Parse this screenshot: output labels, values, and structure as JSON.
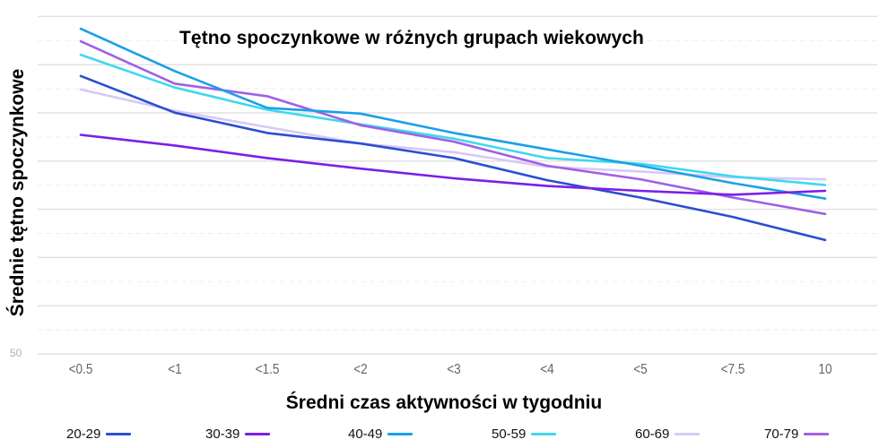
{
  "chart_data": {
    "type": "line",
    "title": "Tętno spoczynkowe w różnych grupach wiekowych",
    "xlabel": "Średni czas aktywności w tygodniu",
    "ylabel": "Średnie tętno spoczynkowe",
    "categories": [
      "<0.5",
      "<1",
      "<1.5",
      "<2",
      "<3",
      "<4",
      "<5",
      "<7.5",
      "10"
    ],
    "y_tick_labels": [
      "50"
    ],
    "ylim": [
      50,
      85
    ],
    "grid": true,
    "legend_position": "bottom",
    "series": [
      {
        "name": "20-29",
        "color": "#2a4fd0",
        "values": [
          78.8,
          75.0,
          72.9,
          71.8,
          70.3,
          68.0,
          66.2,
          64.2,
          61.8
        ]
      },
      {
        "name": "30-39",
        "color": "#7a1fe8",
        "values": [
          72.7,
          71.6,
          70.3,
          69.2,
          68.2,
          67.4,
          66.9,
          66.5,
          66.9
        ]
      },
      {
        "name": "40-49",
        "color": "#1aa0e8",
        "values": [
          83.7,
          79.3,
          75.5,
          74.9,
          72.9,
          71.2,
          69.5,
          67.7,
          66.1
        ]
      },
      {
        "name": "50-59",
        "color": "#3fd8ee",
        "values": [
          81.0,
          77.6,
          75.3,
          73.8,
          72.3,
          70.3,
          69.7,
          68.4,
          67.5
        ]
      },
      {
        "name": "60-69",
        "color": "#d8c8f6",
        "values": [
          77.4,
          75.2,
          73.5,
          71.8,
          70.9,
          69.4,
          68.9,
          68.3,
          68.1
        ]
      },
      {
        "name": "70-79",
        "color": "#a060e6",
        "values": [
          82.4,
          78.0,
          76.7,
          73.7,
          72.0,
          69.5,
          68.1,
          66.2,
          64.5
        ]
      }
    ]
  }
}
